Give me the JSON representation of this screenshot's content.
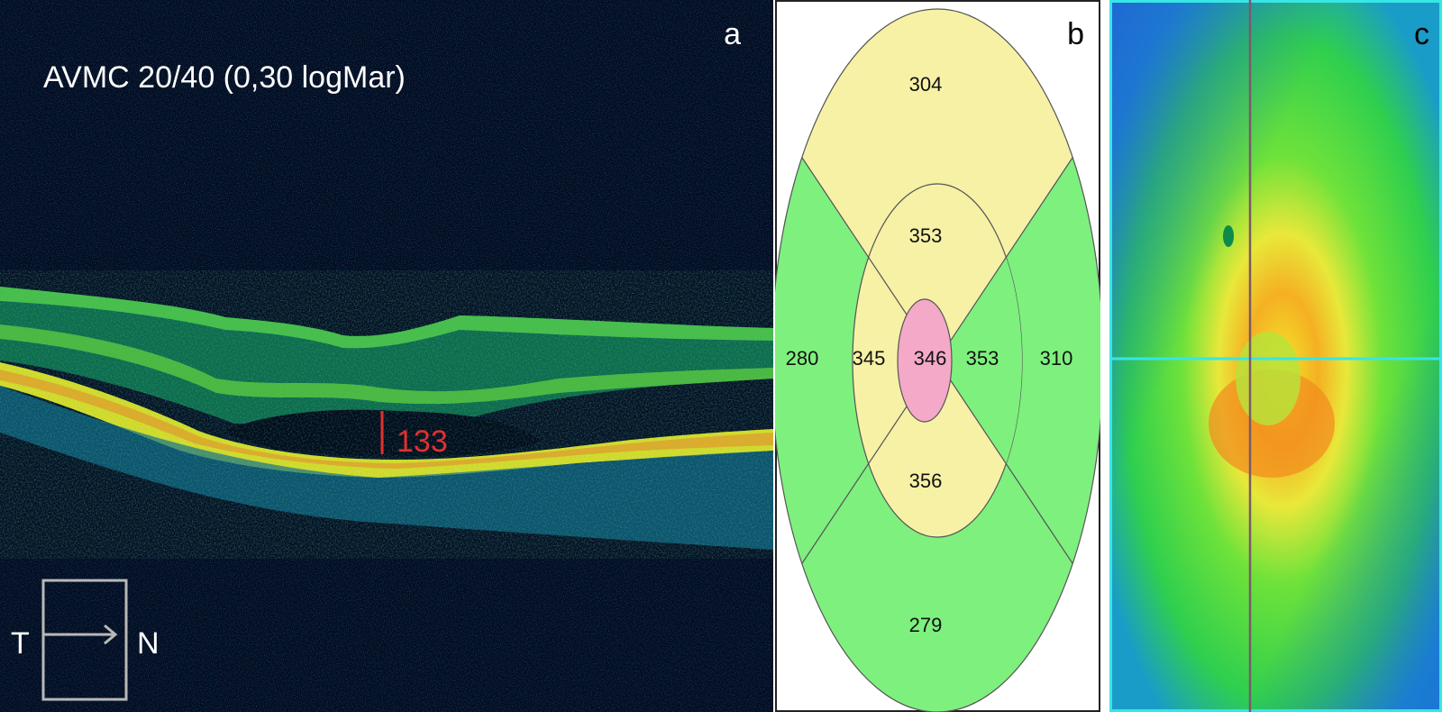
{
  "panels": {
    "a": {
      "label": "a",
      "acuity_text": "AVMC 20/40 (0,30 logMar)",
      "measurement": "133",
      "orientation": {
        "left": "T",
        "right": "N"
      }
    },
    "b": {
      "label": "b",
      "thickness_map": {
        "outer_superior": "304",
        "inner_superior": "353",
        "outer_temporal": "280",
        "inner_temporal": "345",
        "central": "346",
        "inner_nasal": "353",
        "outer_nasal": "310",
        "inner_inferior": "356",
        "outer_inferior": "279"
      },
      "colors": {
        "normal": "#7ef07e",
        "thick": "#f7f1a6",
        "center": "#f4a9c8"
      }
    },
    "c": {
      "label": "c",
      "crosshair_color": "#38e6e6",
      "vertical_line_color": "#7a5a6a"
    }
  }
}
